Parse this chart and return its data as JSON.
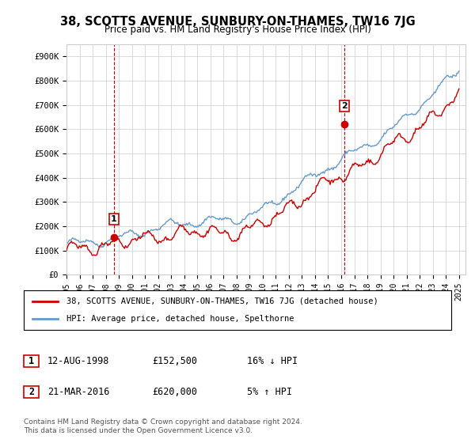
{
  "title": "38, SCOTTS AVENUE, SUNBURY-ON-THAMES, TW16 7JG",
  "subtitle": "Price paid vs. HM Land Registry's House Price Index (HPI)",
  "ylabel_ticks": [
    "£0",
    "£100K",
    "£200K",
    "£300K",
    "£400K",
    "£500K",
    "£600K",
    "£700K",
    "£800K",
    "£900K"
  ],
  "ytick_values": [
    0,
    100000,
    200000,
    300000,
    400000,
    500000,
    600000,
    700000,
    800000,
    900000
  ],
  "ylim": [
    0,
    950000
  ],
  "xlim_start": 1995.0,
  "xlim_end": 2025.5,
  "sale1_year": 1998.617,
  "sale1_price": 152500,
  "sale1_label": "1",
  "sale2_year": 2016.22,
  "sale2_price": 620000,
  "sale2_label": "2",
  "hpi_color": "#6699cc",
  "price_color": "#cc0000",
  "sale_marker_color": "#cc0000",
  "vline_color": "#cc0000",
  "legend_line1": "38, SCOTTS AVENUE, SUNBURY-ON-THAMES, TW16 7JG (detached house)",
  "legend_line2": "HPI: Average price, detached house, Spelthorne",
  "table_row1": [
    "1",
    "12-AUG-1998",
    "£152,500",
    "16% ↓ HPI"
  ],
  "table_row2": [
    "2",
    "21-MAR-2016",
    "£620,000",
    "5% ↑ HPI"
  ],
  "footer": "Contains HM Land Registry data © Crown copyright and database right 2024.\nThis data is licensed under the Open Government Licence v3.0.",
  "background_color": "#ffffff",
  "grid_color": "#cccccc"
}
